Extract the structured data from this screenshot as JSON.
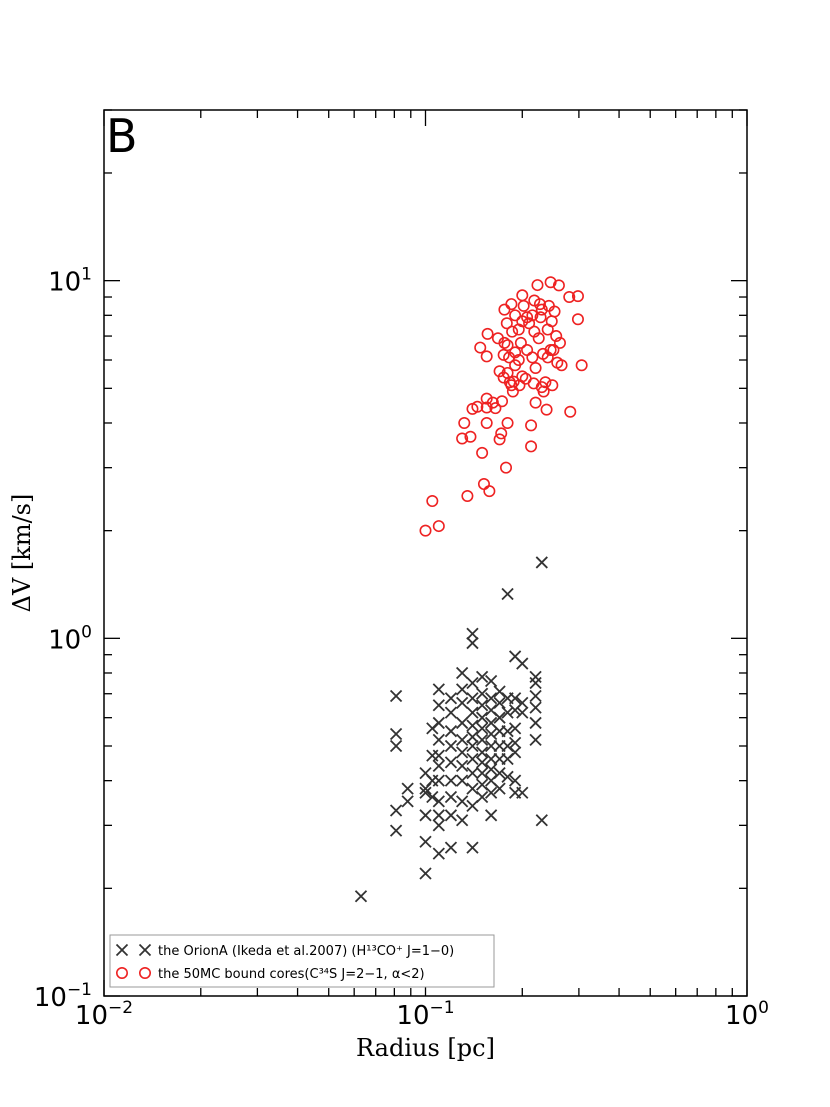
{
  "panel_label": "B",
  "chart_data": {
    "type": "scatter",
    "xscale": "log",
    "yscale": "log",
    "xlim": [
      0.01,
      1
    ],
    "ylim": [
      0.1,
      30
    ],
    "xlabel": "Radius [pc]",
    "ylabel": "ΔV [km/s]",
    "x_ticks": [
      {
        "value": 0.01,
        "base": "10",
        "exp": "−2"
      },
      {
        "value": 0.1,
        "base": "10",
        "exp": "−1"
      },
      {
        "value": 1,
        "base": "10",
        "exp": "0"
      }
    ],
    "y_ticks": [
      {
        "value": 0.1,
        "base": "10",
        "exp": "−1"
      },
      {
        "value": 1,
        "base": "10",
        "exp": "0"
      },
      {
        "value": 10,
        "base": "10",
        "exp": "1"
      }
    ],
    "legend_position": "bottom-left",
    "series": [
      {
        "name": "the OrionA (Ikeda et al.2007) (H¹³CO⁺ J=1−0)",
        "marker": "x",
        "color": "#333333",
        "points": [
          [
            0.063,
            0.19
          ],
          [
            0.081,
            0.69
          ],
          [
            0.081,
            0.54
          ],
          [
            0.081,
            0.5
          ],
          [
            0.081,
            0.33
          ],
          [
            0.081,
            0.29
          ],
          [
            0.088,
            0.38
          ],
          [
            0.088,
            0.35
          ],
          [
            0.1,
            0.42
          ],
          [
            0.1,
            0.38
          ],
          [
            0.1,
            0.37
          ],
          [
            0.1,
            0.32
          ],
          [
            0.1,
            0.27
          ],
          [
            0.1,
            0.22
          ],
          [
            0.105,
            0.56
          ],
          [
            0.105,
            0.47
          ],
          [
            0.105,
            0.4
          ],
          [
            0.105,
            0.36
          ],
          [
            0.11,
            0.72
          ],
          [
            0.11,
            0.65
          ],
          [
            0.11,
            0.58
          ],
          [
            0.11,
            0.52
          ],
          [
            0.11,
            0.47
          ],
          [
            0.11,
            0.44
          ],
          [
            0.11,
            0.4
          ],
          [
            0.11,
            0.35
          ],
          [
            0.11,
            0.32
          ],
          [
            0.11,
            0.3
          ],
          [
            0.11,
            0.25
          ],
          [
            0.12,
            0.68
          ],
          [
            0.12,
            0.62
          ],
          [
            0.12,
            0.55
          ],
          [
            0.12,
            0.5
          ],
          [
            0.12,
            0.45
          ],
          [
            0.12,
            0.4
          ],
          [
            0.12,
            0.36
          ],
          [
            0.12,
            0.32
          ],
          [
            0.12,
            0.26
          ],
          [
            0.13,
            0.8
          ],
          [
            0.13,
            0.72
          ],
          [
            0.13,
            0.66
          ],
          [
            0.13,
            0.58
          ],
          [
            0.13,
            0.52
          ],
          [
            0.13,
            0.48
          ],
          [
            0.13,
            0.44
          ],
          [
            0.13,
            0.4
          ],
          [
            0.13,
            0.35
          ],
          [
            0.13,
            0.31
          ],
          [
            0.14,
            1.03
          ],
          [
            0.14,
            0.97
          ],
          [
            0.14,
            0.75
          ],
          [
            0.14,
            0.68
          ],
          [
            0.14,
            0.62
          ],
          [
            0.14,
            0.57
          ],
          [
            0.14,
            0.53
          ],
          [
            0.14,
            0.5
          ],
          [
            0.14,
            0.46
          ],
          [
            0.14,
            0.42
          ],
          [
            0.14,
            0.38
          ],
          [
            0.14,
            0.34
          ],
          [
            0.14,
            0.26
          ],
          [
            0.15,
            0.78
          ],
          [
            0.15,
            0.7
          ],
          [
            0.15,
            0.65
          ],
          [
            0.15,
            0.6
          ],
          [
            0.15,
            0.56
          ],
          [
            0.15,
            0.52
          ],
          [
            0.15,
            0.48
          ],
          [
            0.15,
            0.45
          ],
          [
            0.15,
            0.42
          ],
          [
            0.15,
            0.39
          ],
          [
            0.15,
            0.36
          ],
          [
            0.16,
            0.76
          ],
          [
            0.16,
            0.68
          ],
          [
            0.16,
            0.63
          ],
          [
            0.16,
            0.58
          ],
          [
            0.16,
            0.54
          ],
          [
            0.16,
            0.5
          ],
          [
            0.16,
            0.46
          ],
          [
            0.16,
            0.43
          ],
          [
            0.16,
            0.4
          ],
          [
            0.16,
            0.37
          ],
          [
            0.16,
            0.32
          ],
          [
            0.17,
            0.71
          ],
          [
            0.17,
            0.66
          ],
          [
            0.17,
            0.6
          ],
          [
            0.17,
            0.55
          ],
          [
            0.17,
            0.5
          ],
          [
            0.17,
            0.46
          ],
          [
            0.17,
            0.42
          ],
          [
            0.17,
            0.38
          ],
          [
            0.18,
            1.33
          ],
          [
            0.18,
            0.68
          ],
          [
            0.18,
            0.62
          ],
          [
            0.18,
            0.55
          ],
          [
            0.18,
            0.5
          ],
          [
            0.18,
            0.46
          ],
          [
            0.18,
            0.41
          ],
          [
            0.19,
            0.89
          ],
          [
            0.19,
            0.68
          ],
          [
            0.19,
            0.63
          ],
          [
            0.19,
            0.56
          ],
          [
            0.19,
            0.51
          ],
          [
            0.19,
            0.48
          ],
          [
            0.19,
            0.4
          ],
          [
            0.19,
            0.37
          ],
          [
            0.2,
            0.85
          ],
          [
            0.2,
            0.66
          ],
          [
            0.2,
            0.62
          ],
          [
            0.2,
            0.37
          ],
          [
            0.22,
            0.78
          ],
          [
            0.22,
            0.75
          ],
          [
            0.22,
            0.69
          ],
          [
            0.22,
            0.64
          ],
          [
            0.22,
            0.58
          ],
          [
            0.22,
            0.52
          ],
          [
            0.23,
            1.63
          ],
          [
            0.23,
            0.31
          ]
        ]
      },
      {
        "name": "the 50MC bound cores(C³⁴S J=2−1, α<2)",
        "marker": "o",
        "color": "#ee2222",
        "points": [
          [
            0.1,
            2.0
          ],
          [
            0.105,
            2.42
          ],
          [
            0.11,
            2.06
          ],
          [
            0.13,
            3.62
          ],
          [
            0.132,
            4.0
          ],
          [
            0.135,
            2.5
          ],
          [
            0.138,
            3.66
          ],
          [
            0.14,
            4.38
          ],
          [
            0.145,
            4.44
          ],
          [
            0.148,
            6.5
          ],
          [
            0.15,
            3.3
          ],
          [
            0.152,
            2.7
          ],
          [
            0.155,
            4.42
          ],
          [
            0.155,
            4.0
          ],
          [
            0.155,
            4.68
          ],
          [
            0.155,
            6.14
          ],
          [
            0.156,
            7.1
          ],
          [
            0.158,
            2.58
          ],
          [
            0.162,
            4.56
          ],
          [
            0.165,
            4.4
          ],
          [
            0.168,
            6.9
          ],
          [
            0.17,
            5.58
          ],
          [
            0.17,
            3.6
          ],
          [
            0.172,
            3.74
          ],
          [
            0.173,
            4.6
          ],
          [
            0.175,
            5.36
          ],
          [
            0.175,
            6.2
          ],
          [
            0.176,
            8.3
          ],
          [
            0.176,
            6.7
          ],
          [
            0.178,
            3.0
          ],
          [
            0.179,
            7.6
          ],
          [
            0.18,
            4.0
          ],
          [
            0.18,
            5.52
          ],
          [
            0.18,
            6.6
          ],
          [
            0.182,
            6.1
          ],
          [
            0.183,
            5.2
          ],
          [
            0.185,
            8.6
          ],
          [
            0.185,
            5.1
          ],
          [
            0.186,
            7.2
          ],
          [
            0.187,
            4.9
          ],
          [
            0.188,
            5.22
          ],
          [
            0.19,
            5.8
          ],
          [
            0.19,
            6.3
          ],
          [
            0.19,
            8.0
          ],
          [
            0.195,
            7.3
          ],
          [
            0.195,
            6.0
          ],
          [
            0.196,
            5.1
          ],
          [
            0.198,
            6.7
          ],
          [
            0.2,
            9.1
          ],
          [
            0.2,
            5.4
          ],
          [
            0.2,
            7.7
          ],
          [
            0.202,
            8.5
          ],
          [
            0.205,
            5.32
          ],
          [
            0.207,
            7.9
          ],
          [
            0.207,
            6.4
          ],
          [
            0.21,
            7.6
          ],
          [
            0.213,
            3.94
          ],
          [
            0.213,
            3.44
          ],
          [
            0.215,
            6.1
          ],
          [
            0.215,
            8.0
          ],
          [
            0.217,
            5.16
          ],
          [
            0.218,
            7.2
          ],
          [
            0.218,
            8.8
          ],
          [
            0.22,
            5.7
          ],
          [
            0.22,
            4.56
          ],
          [
            0.223,
            9.72
          ],
          [
            0.225,
            6.9
          ],
          [
            0.227,
            8.6
          ],
          [
            0.228,
            7.9
          ],
          [
            0.23,
            8.3
          ],
          [
            0.23,
            5.04
          ],
          [
            0.232,
            6.24
          ],
          [
            0.233,
            4.9
          ],
          [
            0.236,
            5.2
          ],
          [
            0.238,
            4.36
          ],
          [
            0.24,
            7.3
          ],
          [
            0.24,
            6.1
          ],
          [
            0.242,
            8.5
          ],
          [
            0.245,
            9.9
          ],
          [
            0.245,
            6.4
          ],
          [
            0.247,
            7.7
          ],
          [
            0.248,
            5.1
          ],
          [
            0.25,
            6.4
          ],
          [
            0.252,
            8.2
          ],
          [
            0.255,
            7.0
          ],
          [
            0.257,
            5.9
          ],
          [
            0.26,
            9.7
          ],
          [
            0.262,
            6.7
          ],
          [
            0.265,
            5.8
          ],
          [
            0.28,
            9.0
          ],
          [
            0.282,
            4.3
          ],
          [
            0.298,
            9.05
          ],
          [
            0.298,
            7.8
          ],
          [
            0.306,
            5.8
          ]
        ]
      }
    ]
  }
}
